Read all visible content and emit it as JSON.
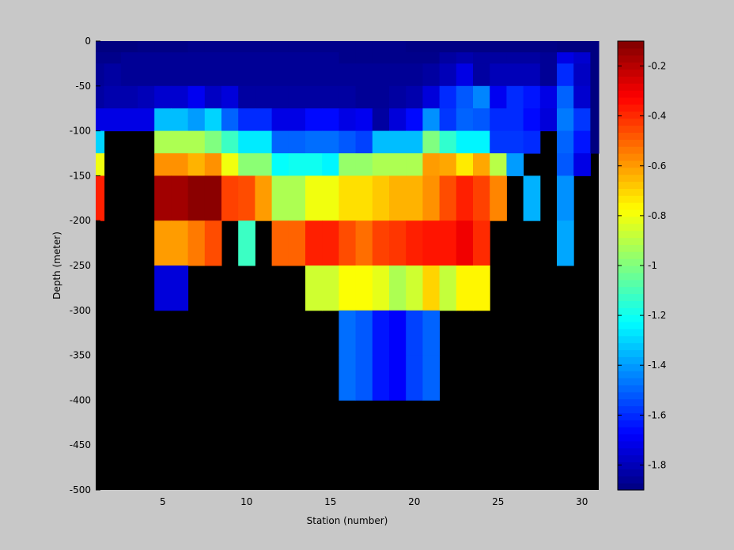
{
  "colors": {
    "background": "#c8c8c8",
    "missing": "#000000",
    "colormap": "jet"
  },
  "chart_data": {
    "type": "heatmap",
    "title": "",
    "xlabel": "Station (number)",
    "ylabel": "Depth (meter)",
    "xlim": [
      1,
      31
    ],
    "ylim": [
      -500,
      0
    ],
    "x_ticks": [
      5,
      10,
      15,
      20,
      25,
      30
    ],
    "y_ticks": [
      0,
      -50,
      -100,
      -150,
      -200,
      -250,
      -300,
      -350,
      -400,
      -450,
      -500
    ],
    "stations": [
      1,
      2,
      3,
      4,
      5,
      6,
      7,
      8,
      9,
      10,
      11,
      12,
      13,
      14,
      15,
      16,
      17,
      18,
      19,
      20,
      21,
      22,
      23,
      24,
      25,
      26,
      27,
      28,
      29,
      30,
      31
    ],
    "depth_bins_top": [
      0,
      -12.5,
      -25,
      -50,
      -75,
      -100,
      -125,
      -150,
      -200,
      -250,
      -300,
      -350,
      -400,
      -450,
      -500
    ],
    "colorbar": {
      "range": [
        -1.9,
        -0.1
      ],
      "ticks": [
        -0.2,
        -0.4,
        -0.6,
        -0.8,
        -1,
        -1.2,
        -1.4,
        -1.6,
        -1.8
      ]
    },
    "note_missing": null,
    "values": [
      [
        -1.9,
        -1.9,
        -1.9,
        -1.89,
        -1.89,
        -1.89,
        -1.88,
        -1.88,
        -1.88,
        -1.88,
        -1.88,
        -1.88,
        -1.88,
        -1.88,
        -1.88,
        -1.88,
        -1.88,
        -1.88,
        -1.88,
        -1.89,
        -1.89,
        -1.89,
        -1.89,
        -1.89,
        -1.89,
        -1.89,
        -1.89,
        -1.89,
        -1.9,
        -1.9,
        -1.9
      ],
      [
        -1.88,
        -1.88,
        -1.86,
        -1.86,
        -1.86,
        -1.86,
        -1.86,
        -1.86,
        -1.86,
        -1.86,
        -1.86,
        -1.86,
        -1.86,
        -1.86,
        -1.86,
        -1.88,
        -1.88,
        -1.88,
        -1.88,
        -1.88,
        -1.88,
        -1.84,
        -1.82,
        -1.84,
        -1.84,
        -1.84,
        -1.84,
        -1.86,
        -1.72,
        -1.76,
        -1.9
      ],
      [
        -1.86,
        -1.84,
        -1.86,
        -1.86,
        -1.86,
        -1.86,
        -1.86,
        -1.86,
        -1.86,
        -1.86,
        -1.86,
        -1.86,
        -1.86,
        -1.86,
        -1.86,
        -1.86,
        -1.86,
        -1.86,
        -1.86,
        -1.86,
        -1.84,
        -1.8,
        -1.72,
        -1.84,
        -1.8,
        -1.8,
        -1.8,
        -1.86,
        -1.6,
        -1.78,
        -1.9
      ],
      [
        -1.84,
        -1.82,
        -1.82,
        -1.8,
        -1.76,
        -1.76,
        -1.7,
        -1.78,
        -1.74,
        -1.84,
        -1.84,
        -1.84,
        -1.84,
        -1.84,
        -1.84,
        -1.84,
        -1.86,
        -1.86,
        -1.84,
        -1.82,
        -1.74,
        -1.6,
        -1.52,
        -1.44,
        -1.7,
        -1.6,
        -1.64,
        -1.72,
        -1.5,
        -1.76,
        -1.9
      ],
      [
        -1.72,
        -1.72,
        -1.72,
        -1.72,
        -1.34,
        -1.34,
        -1.4,
        -1.3,
        -1.5,
        -1.6,
        -1.6,
        -1.72,
        -1.72,
        -1.66,
        -1.66,
        -1.72,
        -1.7,
        -1.84,
        -1.74,
        -1.66,
        -1.42,
        -1.58,
        -1.5,
        -1.52,
        -1.6,
        -1.6,
        -1.66,
        -1.74,
        -1.46,
        -1.58,
        -1.9
      ],
      [
        -1.3,
        null,
        null,
        null,
        -0.92,
        -0.92,
        -0.92,
        -1.0,
        -1.12,
        -1.26,
        -1.26,
        -1.5,
        -1.5,
        -1.48,
        -1.48,
        -1.52,
        -1.56,
        -1.34,
        -1.34,
        -1.34,
        -1.0,
        -1.14,
        -1.24,
        -1.24,
        -1.58,
        -1.58,
        -1.6,
        null,
        -1.5,
        -1.64,
        -1.9
      ],
      [
        -0.8,
        null,
        null,
        null,
        -0.58,
        -0.58,
        -0.64,
        -0.58,
        -0.8,
        -0.98,
        -0.98,
        -1.22,
        -1.2,
        -1.2,
        -1.24,
        -0.96,
        -0.96,
        -0.92,
        -0.92,
        -0.92,
        -0.6,
        -0.62,
        -0.74,
        -0.62,
        -0.9,
        -1.4,
        null,
        null,
        -1.52,
        -1.72,
        null
      ],
      [
        -0.38,
        null,
        null,
        null,
        -0.16,
        -0.16,
        -0.12,
        -0.12,
        -0.44,
        -0.46,
        -0.6,
        -0.92,
        -0.92,
        -0.8,
        -0.8,
        -0.72,
        -0.72,
        -0.68,
        -0.64,
        -0.64,
        -0.58,
        -0.46,
        -0.38,
        -0.44,
        -0.56,
        null,
        -1.36,
        null,
        -1.42,
        null,
        null
      ],
      [
        null,
        null,
        null,
        null,
        -0.6,
        -0.6,
        -0.54,
        -0.46,
        null,
        -1.12,
        null,
        -0.5,
        -0.5,
        -0.38,
        -0.38,
        -0.46,
        -0.52,
        -0.44,
        -0.42,
        -0.38,
        -0.36,
        -0.36,
        -0.3,
        -0.4,
        null,
        null,
        null,
        null,
        -1.38,
        null,
        null
      ],
      [
        null,
        null,
        null,
        null,
        -1.74,
        -1.74,
        null,
        null,
        null,
        null,
        null,
        null,
        null,
        -0.86,
        -0.86,
        -0.78,
        -0.78,
        -0.82,
        -0.92,
        -0.86,
        -0.7,
        -0.88,
        -0.76,
        -0.76,
        null,
        null,
        null,
        null,
        null,
        null,
        null
      ],
      [
        null,
        null,
        null,
        null,
        null,
        null,
        null,
        null,
        null,
        null,
        null,
        null,
        null,
        null,
        null,
        -1.48,
        -1.52,
        -1.64,
        -1.68,
        -1.56,
        -1.5,
        null,
        null,
        null,
        null,
        null,
        null,
        null,
        null,
        null,
        null
      ],
      [
        null,
        null,
        null,
        null,
        null,
        null,
        null,
        null,
        null,
        null,
        null,
        null,
        null,
        null,
        null,
        -1.48,
        -1.52,
        -1.64,
        -1.68,
        -1.56,
        -1.5,
        null,
        null,
        null,
        null,
        null,
        null,
        null,
        null,
        null,
        null
      ],
      [
        null,
        null,
        null,
        null,
        null,
        null,
        null,
        null,
        null,
        null,
        null,
        null,
        null,
        null,
        null,
        null,
        null,
        null,
        null,
        null,
        null,
        null,
        null,
        null,
        null,
        null,
        null,
        null,
        null,
        null,
        null
      ],
      [
        null,
        null,
        null,
        null,
        null,
        null,
        null,
        null,
        null,
        null,
        null,
        null,
        null,
        null,
        null,
        null,
        null,
        null,
        null,
        null,
        null,
        null,
        null,
        null,
        null,
        null,
        null,
        null,
        null,
        null,
        null
      ]
    ]
  }
}
